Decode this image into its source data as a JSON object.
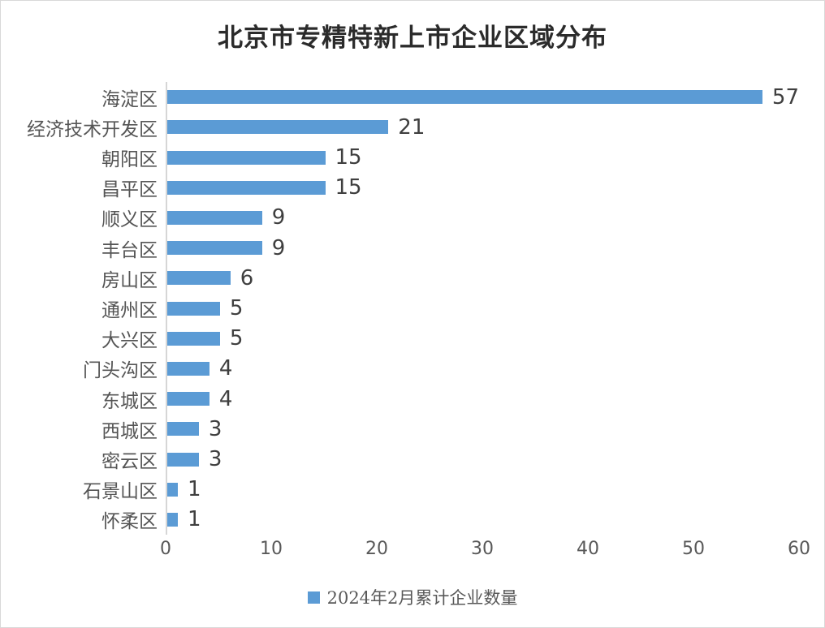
{
  "chart_data": {
    "type": "bar",
    "orientation": "horizontal",
    "title": "北京市专精特新上市企业区域分布",
    "series_name": "2024年2月累计企业数量",
    "categories": [
      "海淀区",
      "经济技术开发区",
      "朝阳区",
      "昌平区",
      "顺义区",
      "丰台区",
      "房山区",
      "通州区",
      "大兴区",
      "门头沟区",
      "东城区",
      "西城区",
      "密云区",
      "石景山区",
      "怀柔区"
    ],
    "values": [
      57,
      21,
      15,
      15,
      9,
      9,
      6,
      5,
      5,
      4,
      4,
      3,
      3,
      1,
      1
    ],
    "xlabel": "",
    "ylabel": "",
    "xlim": [
      0,
      60
    ],
    "x_ticks": [
      0,
      10,
      20,
      30,
      40,
      50,
      60
    ],
    "bar_color": "#5B9BD5",
    "axis_line_color": "#d6d6d6",
    "data_labels": true,
    "grid": false,
    "legend_position": "bottom"
  }
}
